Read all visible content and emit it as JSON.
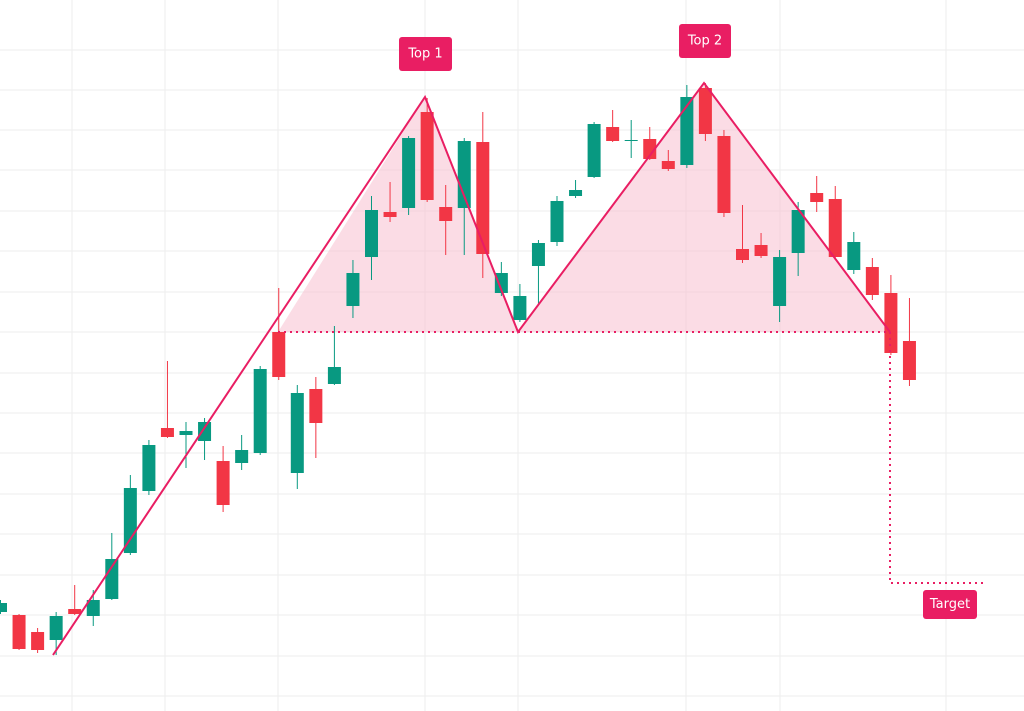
{
  "chart_data": {
    "type": "candlestick",
    "up_color": "#089981",
    "down_color": "#f23645",
    "ylim": [
      0,
      711
    ],
    "open": [
      99,
      96,
      79,
      71,
      102,
      95,
      112,
      158,
      220,
      283,
      276,
      270,
      250,
      248,
      258,
      379,
      238,
      322,
      327,
      405,
      454,
      499,
      503,
      599,
      504,
      503,
      569,
      418,
      391,
      445,
      469,
      515,
      534,
      584,
      570,
      572,
      550,
      546,
      623,
      575,
      462,
      466,
      405,
      458,
      518,
      512,
      441,
      444,
      418,
      370
    ],
    "high": [
      111,
      97,
      83,
      99,
      126,
      121,
      178,
      236,
      271,
      350,
      289,
      293,
      265,
      276,
      345,
      423,
      326,
      334,
      385,
      451,
      515,
      529,
      575,
      613,
      526,
      573,
      599,
      449,
      427,
      471,
      515,
      531,
      589,
      601,
      591,
      584,
      561,
      626,
      628,
      581,
      506,
      478,
      461,
      509,
      535,
      525,
      479,
      453,
      436,
      413
    ],
    "low": [
      97,
      61,
      58,
      56,
      96,
      85,
      111,
      156,
      216,
      273,
      243,
      251,
      199,
      241,
      256,
      331,
      222,
      253,
      326,
      393,
      431,
      489,
      496,
      509,
      456,
      456,
      433,
      415,
      389,
      406,
      465,
      513,
      533,
      569,
      553,
      551,
      540,
      543,
      570,
      494,
      448,
      453,
      389,
      435,
      499,
      451,
      437,
      411,
      356,
      325
    ],
    "close": [
      108,
      62,
      61,
      95,
      97,
      111,
      152,
      223,
      266,
      274,
      280,
      289,
      206,
      261,
      342,
      334,
      318,
      288,
      344,
      438,
      501,
      494,
      573,
      511,
      490,
      570,
      457,
      438,
      415,
      468,
      510,
      521,
      587,
      570,
      571,
      552,
      542,
      614,
      577,
      498,
      451,
      455,
      454,
      501,
      509,
      454,
      469,
      416,
      358,
      331
    ],
    "annotations": [
      "Top 1",
      "Top 2",
      "Target"
    ]
  }
}
